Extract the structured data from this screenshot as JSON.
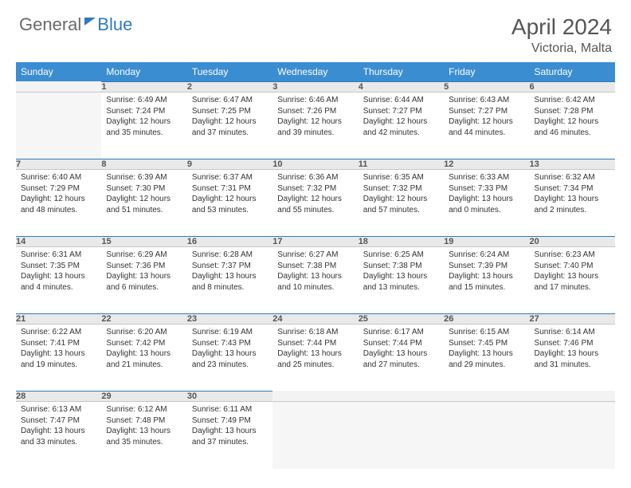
{
  "logo": {
    "text1": "General",
    "text2": "Blue"
  },
  "title": "April 2024",
  "location": "Victoria, Malta",
  "colors": {
    "header_bg": "#3b8dd1",
    "accent": "#2f7ac0",
    "daynum_bg": "#e9e9e9",
    "text": "#333333"
  },
  "layout": {
    "first_weekday_offset": 1,
    "days_in_month": 30
  },
  "weekdays": [
    "Sunday",
    "Monday",
    "Tuesday",
    "Wednesday",
    "Thursday",
    "Friday",
    "Saturday"
  ],
  "days": [
    {
      "n": 1,
      "sunrise": "6:49 AM",
      "sunset": "7:24 PM",
      "daylight": "12 hours and 35 minutes."
    },
    {
      "n": 2,
      "sunrise": "6:47 AM",
      "sunset": "7:25 PM",
      "daylight": "12 hours and 37 minutes."
    },
    {
      "n": 3,
      "sunrise": "6:46 AM",
      "sunset": "7:26 PM",
      "daylight": "12 hours and 39 minutes."
    },
    {
      "n": 4,
      "sunrise": "6:44 AM",
      "sunset": "7:27 PM",
      "daylight": "12 hours and 42 minutes."
    },
    {
      "n": 5,
      "sunrise": "6:43 AM",
      "sunset": "7:27 PM",
      "daylight": "12 hours and 44 minutes."
    },
    {
      "n": 6,
      "sunrise": "6:42 AM",
      "sunset": "7:28 PM",
      "daylight": "12 hours and 46 minutes."
    },
    {
      "n": 7,
      "sunrise": "6:40 AM",
      "sunset": "7:29 PM",
      "daylight": "12 hours and 48 minutes."
    },
    {
      "n": 8,
      "sunrise": "6:39 AM",
      "sunset": "7:30 PM",
      "daylight": "12 hours and 51 minutes."
    },
    {
      "n": 9,
      "sunrise": "6:37 AM",
      "sunset": "7:31 PM",
      "daylight": "12 hours and 53 minutes."
    },
    {
      "n": 10,
      "sunrise": "6:36 AM",
      "sunset": "7:32 PM",
      "daylight": "12 hours and 55 minutes."
    },
    {
      "n": 11,
      "sunrise": "6:35 AM",
      "sunset": "7:32 PM",
      "daylight": "12 hours and 57 minutes."
    },
    {
      "n": 12,
      "sunrise": "6:33 AM",
      "sunset": "7:33 PM",
      "daylight": "13 hours and 0 minutes."
    },
    {
      "n": 13,
      "sunrise": "6:32 AM",
      "sunset": "7:34 PM",
      "daylight": "13 hours and 2 minutes."
    },
    {
      "n": 14,
      "sunrise": "6:31 AM",
      "sunset": "7:35 PM",
      "daylight": "13 hours and 4 minutes."
    },
    {
      "n": 15,
      "sunrise": "6:29 AM",
      "sunset": "7:36 PM",
      "daylight": "13 hours and 6 minutes."
    },
    {
      "n": 16,
      "sunrise": "6:28 AM",
      "sunset": "7:37 PM",
      "daylight": "13 hours and 8 minutes."
    },
    {
      "n": 17,
      "sunrise": "6:27 AM",
      "sunset": "7:38 PM",
      "daylight": "13 hours and 10 minutes."
    },
    {
      "n": 18,
      "sunrise": "6:25 AM",
      "sunset": "7:38 PM",
      "daylight": "13 hours and 13 minutes."
    },
    {
      "n": 19,
      "sunrise": "6:24 AM",
      "sunset": "7:39 PM",
      "daylight": "13 hours and 15 minutes."
    },
    {
      "n": 20,
      "sunrise": "6:23 AM",
      "sunset": "7:40 PM",
      "daylight": "13 hours and 17 minutes."
    },
    {
      "n": 21,
      "sunrise": "6:22 AM",
      "sunset": "7:41 PM",
      "daylight": "13 hours and 19 minutes."
    },
    {
      "n": 22,
      "sunrise": "6:20 AM",
      "sunset": "7:42 PM",
      "daylight": "13 hours and 21 minutes."
    },
    {
      "n": 23,
      "sunrise": "6:19 AM",
      "sunset": "7:43 PM",
      "daylight": "13 hours and 23 minutes."
    },
    {
      "n": 24,
      "sunrise": "6:18 AM",
      "sunset": "7:44 PM",
      "daylight": "13 hours and 25 minutes."
    },
    {
      "n": 25,
      "sunrise": "6:17 AM",
      "sunset": "7:44 PM",
      "daylight": "13 hours and 27 minutes."
    },
    {
      "n": 26,
      "sunrise": "6:15 AM",
      "sunset": "7:45 PM",
      "daylight": "13 hours and 29 minutes."
    },
    {
      "n": 27,
      "sunrise": "6:14 AM",
      "sunset": "7:46 PM",
      "daylight": "13 hours and 31 minutes."
    },
    {
      "n": 28,
      "sunrise": "6:13 AM",
      "sunset": "7:47 PM",
      "daylight": "13 hours and 33 minutes."
    },
    {
      "n": 29,
      "sunrise": "6:12 AM",
      "sunset": "7:48 PM",
      "daylight": "13 hours and 35 minutes."
    },
    {
      "n": 30,
      "sunrise": "6:11 AM",
      "sunset": "7:49 PM",
      "daylight": "13 hours and 37 minutes."
    }
  ],
  "labels": {
    "sunrise": "Sunrise:",
    "sunset": "Sunset:",
    "daylight": "Daylight:"
  }
}
